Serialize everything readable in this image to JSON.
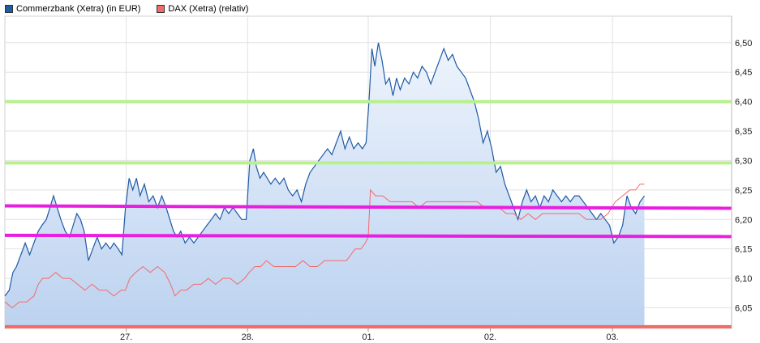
{
  "chart_data": {
    "type": "line",
    "legend_position": "top-left",
    "grid": true,
    "y_axis_side": "right",
    "ylim": [
      6.015,
      6.545
    ],
    "yticks": [
      "6,05",
      "6,10",
      "6,15",
      "6,20",
      "6,25",
      "6,30",
      "6,35",
      "6,40",
      "6,45",
      "6,50"
    ],
    "ytick_values": [
      6.05,
      6.1,
      6.15,
      6.2,
      6.25,
      6.3,
      6.35,
      6.4,
      6.45,
      6.5
    ],
    "xlim": [
      0,
      100
    ],
    "xticks": [
      {
        "label": "27.",
        "x": 16.7
      },
      {
        "label": "28.",
        "x": 33.4
      },
      {
        "label": "01.",
        "x": 50.0
      },
      {
        "label": "02.",
        "x": 66.8
      },
      {
        "label": "03.",
        "x": 83.6
      }
    ],
    "series": [
      {
        "name": "Commerzbank (Xetra) (in EUR)",
        "color": "#1f5aa6",
        "fill_top": "#e8f0fb",
        "fill_bottom": "#b9d0f0",
        "points": [
          [
            0.0,
            6.07
          ],
          [
            0.6,
            6.08
          ],
          [
            1.1,
            6.11
          ],
          [
            1.6,
            6.12
          ],
          [
            2.2,
            6.14
          ],
          [
            2.8,
            6.16
          ],
          [
            3.4,
            6.14
          ],
          [
            4.0,
            6.16
          ],
          [
            4.6,
            6.18
          ],
          [
            5.1,
            6.19
          ],
          [
            5.7,
            6.2
          ],
          [
            6.2,
            6.22
          ],
          [
            6.7,
            6.24
          ],
          [
            7.2,
            6.22
          ],
          [
            7.7,
            6.2
          ],
          [
            8.3,
            6.18
          ],
          [
            8.9,
            6.17
          ],
          [
            9.4,
            6.19
          ],
          [
            9.9,
            6.21
          ],
          [
            10.4,
            6.2
          ],
          [
            10.9,
            6.18
          ],
          [
            11.5,
            6.13
          ],
          [
            12.1,
            6.15
          ],
          [
            12.7,
            6.17
          ],
          [
            13.3,
            6.15
          ],
          [
            13.9,
            6.16
          ],
          [
            14.5,
            6.15
          ],
          [
            15.0,
            6.16
          ],
          [
            15.6,
            6.15
          ],
          [
            16.1,
            6.14
          ],
          [
            16.6,
            6.22
          ],
          [
            17.1,
            6.27
          ],
          [
            17.6,
            6.25
          ],
          [
            18.1,
            6.27
          ],
          [
            18.6,
            6.24
          ],
          [
            19.2,
            6.26
          ],
          [
            19.8,
            6.23
          ],
          [
            20.4,
            6.24
          ],
          [
            21.0,
            6.22
          ],
          [
            21.6,
            6.24
          ],
          [
            22.2,
            6.22
          ],
          [
            22.7,
            6.2
          ],
          [
            23.2,
            6.18
          ],
          [
            23.7,
            6.17
          ],
          [
            24.2,
            6.18
          ],
          [
            24.8,
            6.16
          ],
          [
            25.4,
            6.17
          ],
          [
            26.0,
            6.16
          ],
          [
            26.6,
            6.17
          ],
          [
            27.2,
            6.18
          ],
          [
            27.8,
            6.19
          ],
          [
            28.4,
            6.2
          ],
          [
            29.0,
            6.21
          ],
          [
            29.6,
            6.2
          ],
          [
            30.2,
            6.22
          ],
          [
            30.8,
            6.21
          ],
          [
            31.4,
            6.22
          ],
          [
            32.0,
            6.21
          ],
          [
            32.6,
            6.2
          ],
          [
            33.2,
            6.2
          ],
          [
            33.7,
            6.3
          ],
          [
            34.2,
            6.32
          ],
          [
            34.6,
            6.29
          ],
          [
            35.1,
            6.27
          ],
          [
            35.6,
            6.28
          ],
          [
            36.1,
            6.27
          ],
          [
            36.6,
            6.26
          ],
          [
            37.2,
            6.27
          ],
          [
            37.8,
            6.26
          ],
          [
            38.4,
            6.27
          ],
          [
            39.0,
            6.25
          ],
          [
            39.6,
            6.24
          ],
          [
            40.2,
            6.25
          ],
          [
            40.8,
            6.23
          ],
          [
            41.4,
            6.26
          ],
          [
            42.0,
            6.28
          ],
          [
            42.6,
            6.29
          ],
          [
            43.2,
            6.3
          ],
          [
            43.8,
            6.31
          ],
          [
            44.4,
            6.32
          ],
          [
            45.0,
            6.31
          ],
          [
            45.6,
            6.33
          ],
          [
            46.2,
            6.35
          ],
          [
            46.8,
            6.32
          ],
          [
            47.4,
            6.34
          ],
          [
            48.0,
            6.32
          ],
          [
            48.6,
            6.33
          ],
          [
            49.2,
            6.32
          ],
          [
            49.7,
            6.33
          ],
          [
            50.1,
            6.4
          ],
          [
            50.5,
            6.49
          ],
          [
            50.9,
            6.46
          ],
          [
            51.4,
            6.5
          ],
          [
            51.9,
            6.47
          ],
          [
            52.4,
            6.43
          ],
          [
            52.9,
            6.44
          ],
          [
            53.4,
            6.41
          ],
          [
            53.9,
            6.44
          ],
          [
            54.4,
            6.42
          ],
          [
            55.0,
            6.44
          ],
          [
            55.6,
            6.43
          ],
          [
            56.2,
            6.45
          ],
          [
            56.8,
            6.44
          ],
          [
            57.4,
            6.46
          ],
          [
            58.0,
            6.45
          ],
          [
            58.6,
            6.43
          ],
          [
            59.2,
            6.45
          ],
          [
            59.8,
            6.47
          ],
          [
            60.4,
            6.49
          ],
          [
            61.0,
            6.47
          ],
          [
            61.6,
            6.48
          ],
          [
            62.2,
            6.46
          ],
          [
            62.8,
            6.45
          ],
          [
            63.4,
            6.44
          ],
          [
            64.0,
            6.42
          ],
          [
            64.6,
            6.4
          ],
          [
            65.2,
            6.37
          ],
          [
            65.8,
            6.33
          ],
          [
            66.4,
            6.35
          ],
          [
            67.0,
            6.32
          ],
          [
            67.6,
            6.28
          ],
          [
            68.2,
            6.29
          ],
          [
            68.8,
            6.26
          ],
          [
            69.4,
            6.24
          ],
          [
            70.0,
            6.22
          ],
          [
            70.6,
            6.2
          ],
          [
            71.2,
            6.23
          ],
          [
            71.8,
            6.25
          ],
          [
            72.4,
            6.23
          ],
          [
            73.0,
            6.24
          ],
          [
            73.6,
            6.22
          ],
          [
            74.2,
            6.24
          ],
          [
            74.8,
            6.23
          ],
          [
            75.4,
            6.25
          ],
          [
            76.0,
            6.24
          ],
          [
            76.6,
            6.23
          ],
          [
            77.2,
            6.24
          ],
          [
            77.8,
            6.23
          ],
          [
            78.4,
            6.24
          ],
          [
            79.0,
            6.24
          ],
          [
            79.6,
            6.23
          ],
          [
            80.2,
            6.22
          ],
          [
            80.8,
            6.21
          ],
          [
            81.4,
            6.2
          ],
          [
            82.0,
            6.21
          ],
          [
            82.6,
            6.2
          ],
          [
            83.2,
            6.19
          ],
          [
            83.8,
            6.16
          ],
          [
            84.4,
            6.17
          ],
          [
            85.0,
            6.19
          ],
          [
            85.6,
            6.24
          ],
          [
            86.2,
            6.22
          ],
          [
            86.8,
            6.21
          ],
          [
            87.4,
            6.23
          ],
          [
            88.0,
            6.24
          ]
        ]
      },
      {
        "name": "DAX (Xetra) (relativ)",
        "color": "#f26a6a",
        "points": [
          [
            0.0,
            6.06
          ],
          [
            1.0,
            6.05
          ],
          [
            2.0,
            6.06
          ],
          [
            3.0,
            6.06
          ],
          [
            4.0,
            6.07
          ],
          [
            4.6,
            6.09
          ],
          [
            5.2,
            6.1
          ],
          [
            6.0,
            6.1
          ],
          [
            7.0,
            6.11
          ],
          [
            8.0,
            6.1
          ],
          [
            9.0,
            6.1
          ],
          [
            10.0,
            6.09
          ],
          [
            11.0,
            6.08
          ],
          [
            12.0,
            6.09
          ],
          [
            13.0,
            6.08
          ],
          [
            14.0,
            6.08
          ],
          [
            15.0,
            6.07
          ],
          [
            16.0,
            6.08
          ],
          [
            16.6,
            6.08
          ],
          [
            17.2,
            6.1
          ],
          [
            18.0,
            6.11
          ],
          [
            19.0,
            6.12
          ],
          [
            20.0,
            6.11
          ],
          [
            21.0,
            6.12
          ],
          [
            22.0,
            6.11
          ],
          [
            22.8,
            6.09
          ],
          [
            23.4,
            6.07
          ],
          [
            24.2,
            6.08
          ],
          [
            25.0,
            6.08
          ],
          [
            26.0,
            6.09
          ],
          [
            27.0,
            6.09
          ],
          [
            28.0,
            6.1
          ],
          [
            29.0,
            6.09
          ],
          [
            30.0,
            6.1
          ],
          [
            31.0,
            6.1
          ],
          [
            32.0,
            6.09
          ],
          [
            33.0,
            6.1
          ],
          [
            33.6,
            6.11
          ],
          [
            34.4,
            6.12
          ],
          [
            35.2,
            6.12
          ],
          [
            36.0,
            6.13
          ],
          [
            37.0,
            6.12
          ],
          [
            38.0,
            6.12
          ],
          [
            39.0,
            6.12
          ],
          [
            40.0,
            6.12
          ],
          [
            41.0,
            6.13
          ],
          [
            42.0,
            6.12
          ],
          [
            43.0,
            6.12
          ],
          [
            44.0,
            6.13
          ],
          [
            45.0,
            6.13
          ],
          [
            46.0,
            6.13
          ],
          [
            47.0,
            6.13
          ],
          [
            47.6,
            6.14
          ],
          [
            48.2,
            6.15
          ],
          [
            49.0,
            6.15
          ],
          [
            49.6,
            6.16
          ],
          [
            50.0,
            6.17
          ],
          [
            50.3,
            6.25
          ],
          [
            51.0,
            6.24
          ],
          [
            52.0,
            6.24
          ],
          [
            53.0,
            6.23
          ],
          [
            54.0,
            6.23
          ],
          [
            55.0,
            6.23
          ],
          [
            56.0,
            6.23
          ],
          [
            57.0,
            6.22
          ],
          [
            58.0,
            6.23
          ],
          [
            59.0,
            6.23
          ],
          [
            60.0,
            6.23
          ],
          [
            61.0,
            6.23
          ],
          [
            62.0,
            6.23
          ],
          [
            63.0,
            6.23
          ],
          [
            64.0,
            6.23
          ],
          [
            65.0,
            6.23
          ],
          [
            66.0,
            6.22
          ],
          [
            67.0,
            6.22
          ],
          [
            68.0,
            6.22
          ],
          [
            69.0,
            6.21
          ],
          [
            70.0,
            6.21
          ],
          [
            71.0,
            6.2
          ],
          [
            72.0,
            6.21
          ],
          [
            73.0,
            6.2
          ],
          [
            74.0,
            6.21
          ],
          [
            75.0,
            6.21
          ],
          [
            76.0,
            6.21
          ],
          [
            77.0,
            6.21
          ],
          [
            78.0,
            6.21
          ],
          [
            79.0,
            6.21
          ],
          [
            80.0,
            6.2
          ],
          [
            81.0,
            6.2
          ],
          [
            82.0,
            6.2
          ],
          [
            83.0,
            6.21
          ],
          [
            84.0,
            6.23
          ],
          [
            85.0,
            6.24
          ],
          [
            86.0,
            6.25
          ],
          [
            86.8,
            6.25
          ],
          [
            87.4,
            6.26
          ],
          [
            88.0,
            6.26
          ]
        ]
      }
    ],
    "hlines": [
      {
        "y": 6.4,
        "color": "#b8f08c"
      },
      {
        "y": 6.296,
        "color": "#b8f08c"
      },
      {
        "y": 6.223,
        "y_end": 6.219,
        "color": "#e81ee0"
      },
      {
        "y": 6.173,
        "y_end": 6.171,
        "color": "#e81ee0"
      },
      {
        "y": 6.018,
        "color": "#f26a6a"
      }
    ]
  }
}
